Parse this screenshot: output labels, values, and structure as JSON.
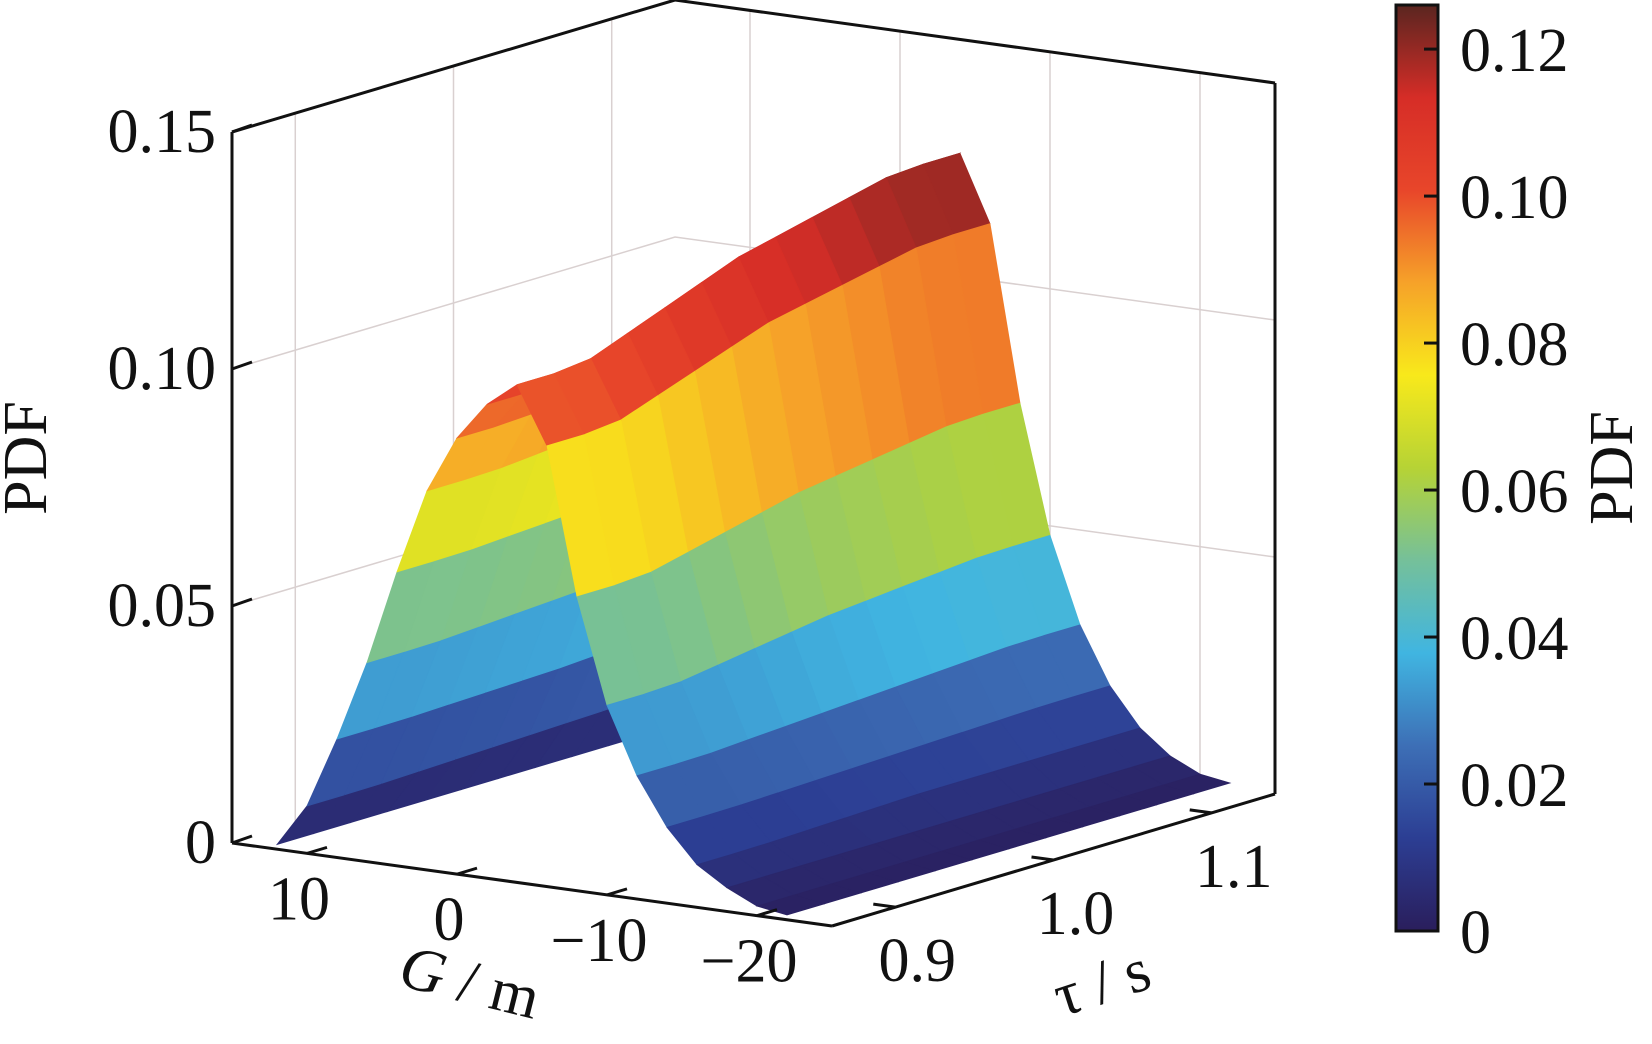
{
  "chart_data": {
    "type": "surface3d",
    "title": "",
    "zlabel": "PDF",
    "xlabel_var": "G",
    "xlabel_unit": " / m",
    "ylabel_var": "τ",
    "ylabel_unit": " / s",
    "colorbar_label": "PDF",
    "zlim": [
      0,
      0.15
    ],
    "z_ticks": [
      0,
      0.05,
      0.1,
      0.15
    ],
    "z_tick_labels": [
      "0",
      "0.05",
      "0.10",
      "0.15"
    ],
    "xlim": [
      15,
      -25
    ],
    "x_ticks": [
      10,
      0,
      -10,
      -20
    ],
    "x_tick_labels": [
      "10",
      "0",
      "−10",
      "−20"
    ],
    "ylim": [
      0.86,
      1.14
    ],
    "y_ticks": [
      0.9,
      1.0,
      1.1
    ],
    "y_tick_labels": [
      "0.9",
      "1.0",
      "1.1"
    ],
    "colorbar_lim": [
      0,
      0.126
    ],
    "colorbar_ticks": [
      0,
      0.02,
      0.04,
      0.06,
      0.08,
      0.1,
      0.12
    ],
    "colorbar_tick_labels": [
      "0",
      "0.02",
      "0.04",
      "0.06",
      "0.08",
      "0.10",
      "0.12"
    ],
    "colormap": [
      "#2a1e5c",
      "#2c3e93",
      "#3d6fb6",
      "#40b5e1",
      "#75c09a",
      "#b6d335",
      "#f8e91b",
      "#f6a229",
      "#e8462a",
      "#d62d27",
      "#5a2520"
    ],
    "grid": true,
    "x": [
      12,
      10,
      8,
      6,
      4,
      2,
      0,
      -2,
      -4,
      -6,
      -8,
      -10,
      -12,
      -14,
      -16,
      -18,
      -20,
      -22
    ],
    "series": [
      {
        "name": "τ = 0.9",
        "values": [
          0.001,
          0.01,
          0.025,
          0.042,
          0.062,
          0.08,
          0.092,
          0.1,
          0.105,
          0.093,
          0.062,
          0.04,
          0.026,
          0.016,
          0.009,
          0.005,
          0.002,
          0.001
        ]
      },
      {
        "name": "τ = 1.0",
        "values": [
          0.001,
          0.011,
          0.026,
          0.044,
          0.064,
          0.083,
          0.098,
          0.11,
          0.118,
          0.105,
          0.07,
          0.045,
          0.028,
          0.017,
          0.01,
          0.005,
          0.002,
          0.001
        ]
      },
      {
        "name": "τ = 1.1",
        "values": [
          0.001,
          0.012,
          0.028,
          0.046,
          0.067,
          0.088,
          0.105,
          0.118,
          0.126,
          0.112,
          0.075,
          0.048,
          0.03,
          0.018,
          0.01,
          0.005,
          0.002,
          0.001
        ]
      }
    ]
  }
}
